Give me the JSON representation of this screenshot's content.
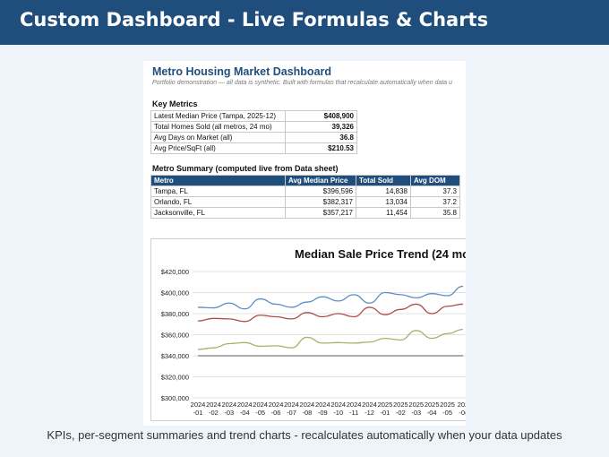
{
  "banner": {
    "title": "Custom Dashboard - Live Formulas & Charts"
  },
  "sheet": {
    "title": "Metro Housing Market Dashboard",
    "subtitle": "Portfolio demonstration — all data is synthetic. Built with formulas that recalculate automatically when data u",
    "kpi_title": "Key Metrics",
    "kpis": [
      {
        "label": "Latest Median Price (Tampa, 2025-12)",
        "value": "$408,900"
      },
      {
        "label": "Total Homes Sold (all metros, 24 mo)",
        "value": "39,326"
      },
      {
        "label": "Avg Days on Market (all)",
        "value": "36.8"
      },
      {
        "label": "Avg Price/SqFt (all)",
        "value": "$210.53"
      }
    ],
    "summary_title": "Metro Summary (computed live from Data sheet)",
    "summary_headers": [
      "Metro",
      "Avg Median Price",
      "Total Sold",
      "Avg DOM"
    ],
    "summary_rows": [
      [
        "Tampa, FL",
        "$396,596",
        "14,838",
        "37.3"
      ],
      [
        "Orlando, FL",
        "$382,317",
        "13,034",
        "37.2"
      ],
      [
        "Jacksonville, FL",
        "$357,217",
        "11,454",
        "35.8"
      ]
    ]
  },
  "chart_data": {
    "type": "line",
    "title": "Median Sale Price Trend (24 mo",
    "x": [
      "2024-01",
      "2024-02",
      "2024-03",
      "2024-04",
      "2024-05",
      "2024-06",
      "2024-07",
      "2024-08",
      "2024-09",
      "2024-10",
      "2024-11",
      "2024-12",
      "2025-01",
      "2025-02",
      "2025-03",
      "2025-04",
      "2025-05",
      "2025-06"
    ],
    "x_tick_top": [
      "2024",
      "2024",
      "2024",
      "2024",
      "2024",
      "2024",
      "2024",
      "2024",
      "2024",
      "2024",
      "2024",
      "2024",
      "2025",
      "2025",
      "2025",
      "2025",
      "2025",
      "202"
    ],
    "x_tick_bottom": [
      "-01",
      "-02",
      "-03",
      "-04",
      "-05",
      "-06",
      "-07",
      "-08",
      "-09",
      "-10",
      "-11",
      "-12",
      "-01",
      "-02",
      "-03",
      "-04",
      "-05",
      "-0("
    ],
    "y_ticks": [
      "$420,000",
      "$400,000",
      "$380,000",
      "$360,000",
      "$340,000",
      "$320,000",
      "$300,000"
    ],
    "ylim": [
      300000,
      420000
    ],
    "grid": true,
    "series": [
      {
        "color": "#5b8ec4",
        "values": [
          386000,
          385500,
          390000,
          384500,
          394000,
          389000,
          386000,
          391000,
          396000,
          392000,
          398000,
          390000,
          400000,
          398000,
          395000,
          399000,
          397000,
          406000
        ]
      },
      {
        "color": "#b04c4c",
        "values": [
          373000,
          375500,
          375000,
          372500,
          378500,
          377000,
          375000,
          381000,
          377000,
          380000,
          377000,
          386000,
          379000,
          384000,
          389000,
          380000,
          387000,
          389000
        ]
      },
      {
        "color": "#9db86a",
        "values": [
          346000,
          347500,
          351500,
          352500,
          349000,
          349500,
          347500,
          357500,
          352000,
          352500,
          352000,
          353000,
          356500,
          355000,
          364000,
          356500,
          361000,
          365000
        ]
      },
      {
        "color": "#7a7a7a",
        "values": [
          340000,
          340000,
          340000,
          340000,
          340000,
          340000,
          340000,
          340000,
          340000,
          340000,
          340000,
          340000,
          340000,
          340000,
          340000,
          340000,
          340000,
          340000
        ]
      }
    ]
  },
  "footer": {
    "text": "KPIs, per-segment summaries and trend charts - recalculates automatically when your data updates"
  }
}
